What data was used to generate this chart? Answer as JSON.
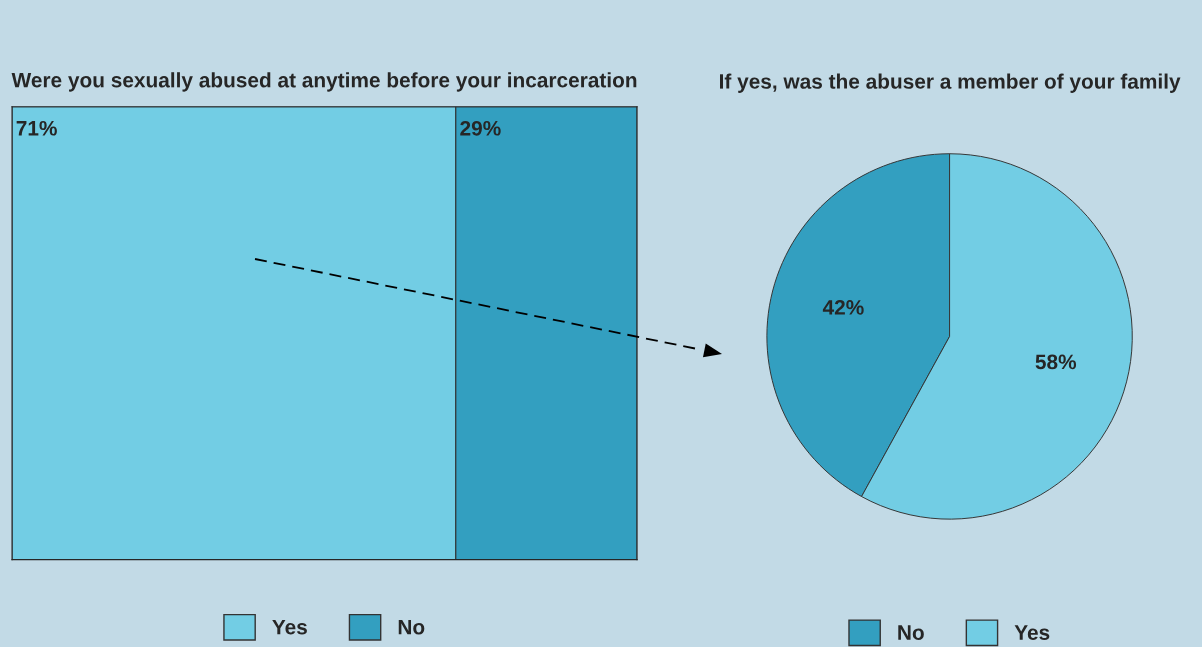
{
  "chart_data": [
    {
      "type": "bar",
      "title": "Were you sexually abused at anytime before your incarceration",
      "orientation": "horizontal",
      "stacked": true,
      "categories": [
        null
      ],
      "xlim": [
        0,
        100
      ],
      "tick_labels": false,
      "legend": "bottom",
      "series": [
        {
          "name": "Yes",
          "color": "#72cde4",
          "values": [
            71
          ],
          "value_labels": [
            "71%"
          ]
        },
        {
          "name": "No",
          "color": "#339fc0",
          "values": [
            29
          ],
          "value_labels": [
            "29%"
          ]
        }
      ]
    },
    {
      "type": "pie",
      "title": "If yes, was the abuser a member of your family",
      "categories": [
        "No",
        "Yes"
      ],
      "values": [
        42,
        58
      ],
      "colors": [
        "#339fc0",
        "#72cde4"
      ],
      "value_labels": [
        "42%",
        "58%"
      ],
      "legend": "bottom"
    }
  ]
}
